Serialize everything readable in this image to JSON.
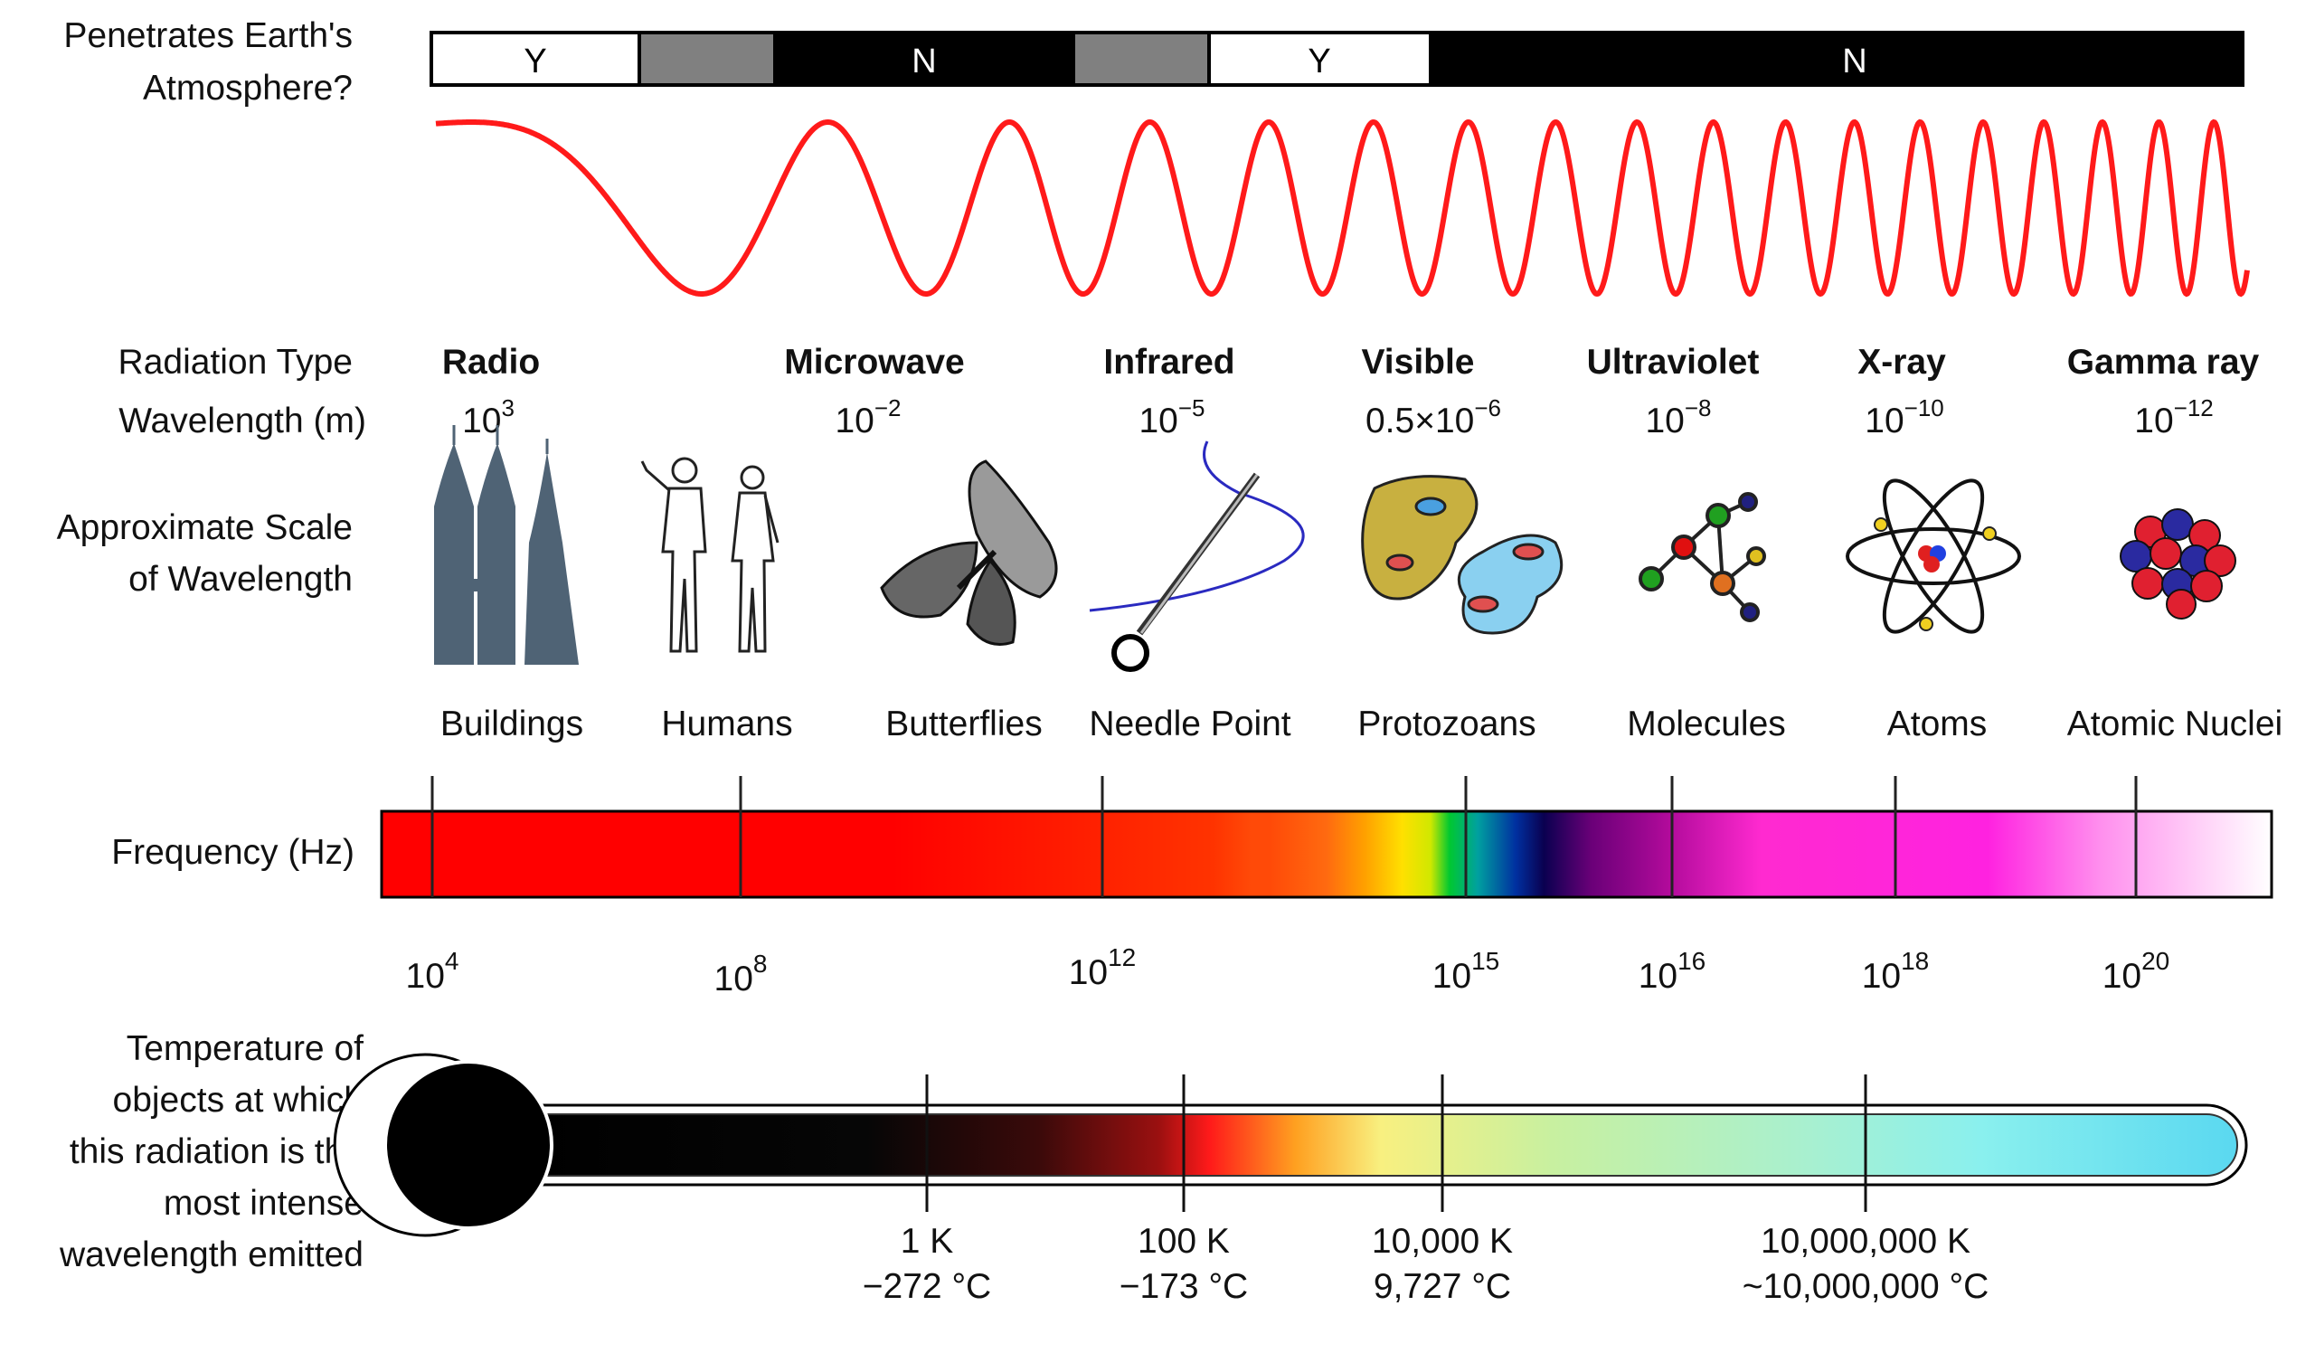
{
  "atmosphere": {
    "label_line1": "Penetrates Earth's",
    "label_line2": "Atmosphere?",
    "segments": [
      {
        "text": "Y",
        "fill": "#ffffff",
        "text_color": "#000000"
      },
      {
        "text": "",
        "fill": "#808080",
        "text_color": "#000000"
      },
      {
        "text": "N",
        "fill": "#000000",
        "text_color": "#ffffff"
      },
      {
        "text": "",
        "fill": "#808080",
        "text_color": "#000000"
      },
      {
        "text": "Y",
        "fill": "#ffffff",
        "text_color": "#000000"
      },
      {
        "text": "N",
        "fill": "#000000",
        "text_color": "#ffffff"
      }
    ]
  },
  "wave_color": "#ff1a1a",
  "labels": {
    "radiation_type": "Radiation Type",
    "wavelength": "Wavelength (m)",
    "scale_line1": "Approximate Scale",
    "scale_line2": "of Wavelength",
    "frequency": "Frequency (Hz)",
    "temp_line1": "Temperature of",
    "temp_line2": "objects at which",
    "temp_line3": "this radiation is the",
    "temp_line4": "most intense",
    "temp_line5": "wavelength emitted"
  },
  "radiation_types": [
    {
      "name": "Radio",
      "wl_base": "10",
      "wl_exp": "3"
    },
    {
      "name": "Microwave",
      "wl_base": "10",
      "wl_exp": "−2"
    },
    {
      "name": "Infrared",
      "wl_base": "10",
      "wl_exp": "−5"
    },
    {
      "name": "Visible",
      "wl_base": "0.5×10",
      "wl_exp": "−6"
    },
    {
      "name": "Ultraviolet",
      "wl_base": "10",
      "wl_exp": "−8"
    },
    {
      "name": "X-ray",
      "wl_base": "10",
      "wl_exp": "−10"
    },
    {
      "name": "Gamma ray",
      "wl_base": "10",
      "wl_exp": "−12"
    }
  ],
  "scale_objects": [
    {
      "label": "Buildings",
      "icon": "buildings-icon"
    },
    {
      "label": "Humans",
      "icon": "humans-icon"
    },
    {
      "label": "Butterflies",
      "icon": "butterfly-icon"
    },
    {
      "label": "Needle Point",
      "icon": "needle-icon"
    },
    {
      "label": "Protozoans",
      "icon": "protozoan-icon"
    },
    {
      "label": "Molecules",
      "icon": "molecule-icon"
    },
    {
      "label": "Atoms",
      "icon": "atom-icon"
    },
    {
      "label": "Atomic Nuclei",
      "icon": "nucleus-icon"
    }
  ],
  "frequency_ticks": [
    {
      "base": "10",
      "exp": "4"
    },
    {
      "base": "10",
      "exp": "8"
    },
    {
      "base": "10",
      "exp": "12"
    },
    {
      "base": "10",
      "exp": "15"
    },
    {
      "base": "10",
      "exp": "16"
    },
    {
      "base": "10",
      "exp": "18"
    },
    {
      "base": "10",
      "exp": "20"
    }
  ],
  "temperature_ticks": [
    {
      "kelvin": "1 K",
      "celsius": "−272 °C"
    },
    {
      "kelvin": "100 K",
      "celsius": "−173 °C"
    },
    {
      "kelvin": "10,000 K",
      "celsius": "9,727 °C"
    },
    {
      "kelvin": "10,000,000 K",
      "celsius": "~10,000,000 °C"
    }
  ]
}
